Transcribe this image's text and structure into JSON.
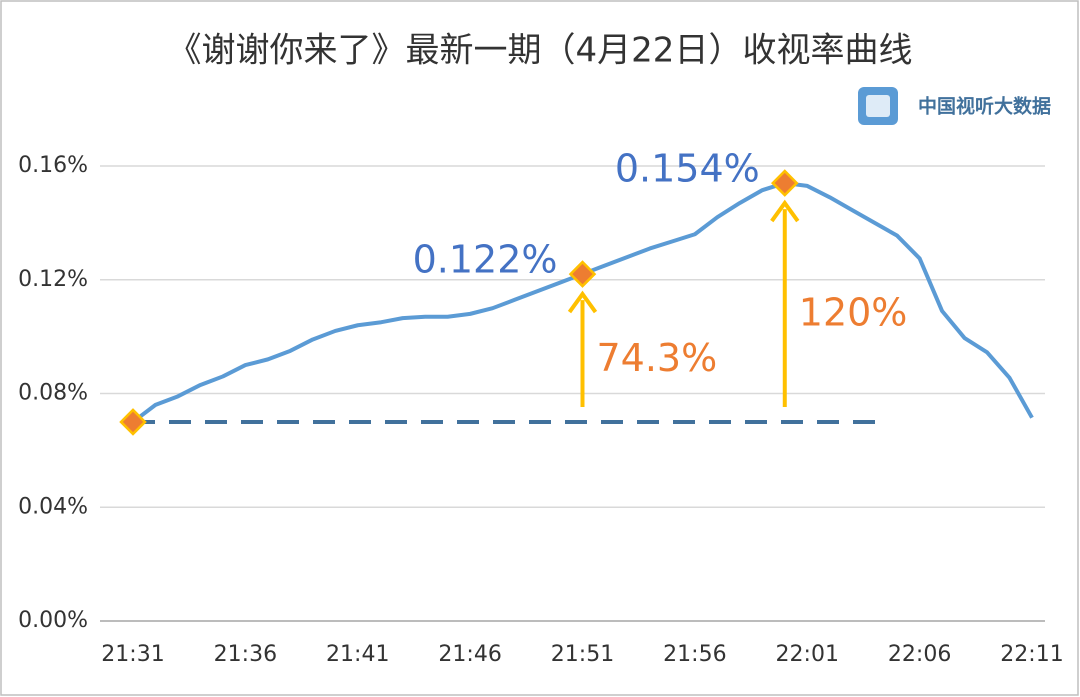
{
  "chart_data": {
    "type": "line",
    "title": "《谢谢你来了》最新一期（4月22日）收视率曲线",
    "logo": "中国视听大数据",
    "categories": [
      "21:31",
      null,
      null,
      null,
      null,
      "21:36",
      null,
      null,
      null,
      null,
      "21:41",
      null,
      null,
      null,
      null,
      "21:46",
      null,
      null,
      null,
      null,
      "21:51",
      null,
      null,
      null,
      null,
      "21:56",
      null,
      null,
      null,
      null,
      "22:01",
      null,
      null,
      null,
      null,
      "22:06",
      null,
      null,
      null,
      null,
      "22:11"
    ],
    "series": [
      {
        "color": "#5b9bd5",
        "values": [
          0.07,
          0.076,
          0.079,
          0.083,
          0.086,
          0.09,
          0.092,
          0.095,
          0.099,
          0.102,
          0.104,
          0.105,
          0.1065,
          0.107,
          0.107,
          0.108,
          0.11,
          0.113,
          0.116,
          0.119,
          0.122,
          0.125,
          0.128,
          0.131,
          0.1335,
          0.136,
          0.142,
          0.147,
          0.1515,
          0.154,
          0.153,
          0.149,
          0.1445,
          0.14,
          0.1355,
          0.1275,
          0.109,
          0.0995,
          0.0945,
          0.0855,
          0.0715
        ],
        "value_labels": [
          null,
          null,
          null,
          null,
          null,
          null,
          null,
          null,
          null,
          null,
          null,
          null,
          null,
          null,
          null,
          null,
          null,
          null,
          null,
          null,
          "0.122%",
          null,
          null,
          null,
          null,
          null,
          null,
          null,
          null,
          "0.154%",
          null,
          null,
          null,
          null,
          null,
          null,
          null,
          null,
          null,
          null,
          null
        ]
      }
    ],
    "annotations": [
      "74.3%",
      "120%"
    ],
    "ylim": [
      0,
      0.16
    ],
    "yticks": [
      {
        "value": 0,
        "label": "0.00%"
      },
      {
        "value": 0.04,
        "label": "0.04%"
      },
      {
        "value": 0.08,
        "label": "0.08%"
      },
      {
        "value": 0.12,
        "label": "0.12%"
      },
      {
        "value": 0.16,
        "label": "0.16%"
      }
    ],
    "grid": true
  }
}
